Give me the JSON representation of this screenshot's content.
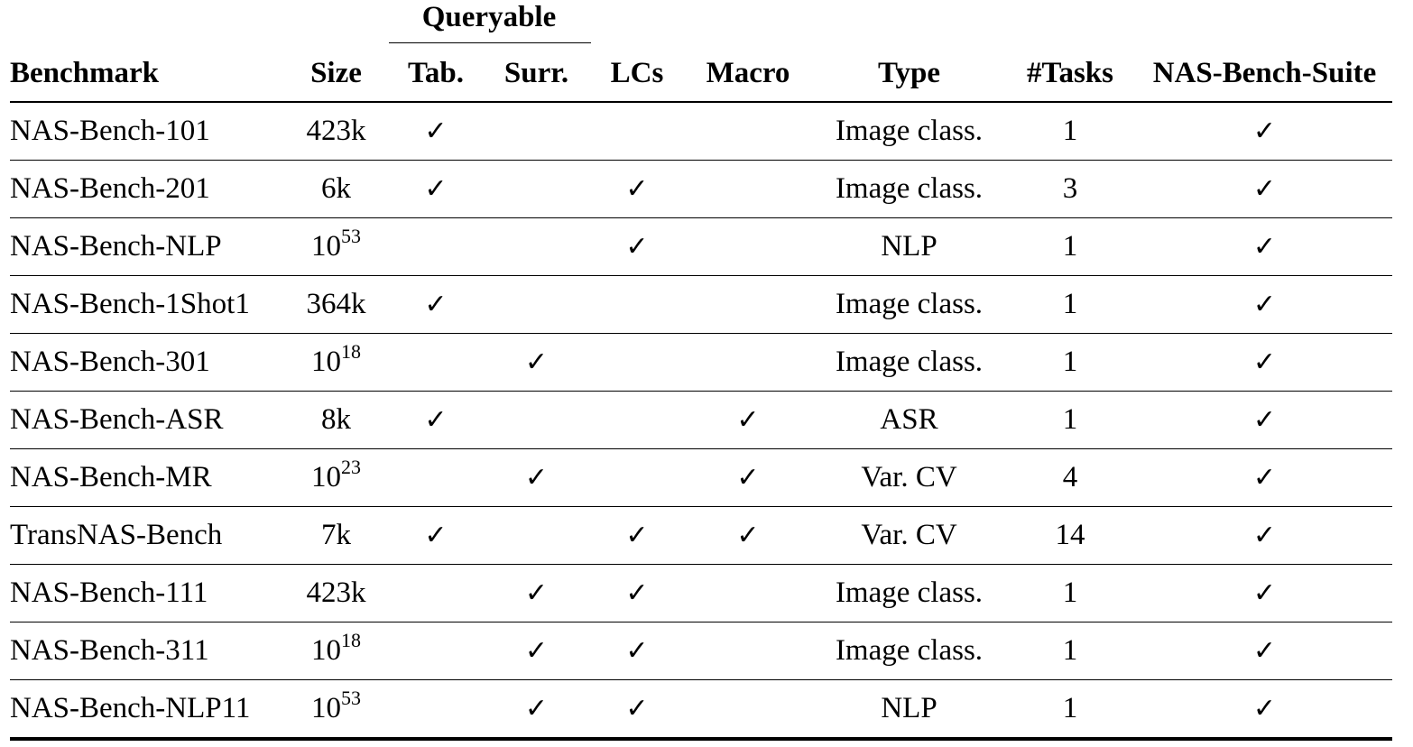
{
  "header": {
    "group_label": "Queryable",
    "columns": [
      "Benchmark",
      "Size",
      "Tab.",
      "Surr.",
      "LCs",
      "Macro",
      "Type",
      "#Tasks",
      "NAS-Bench-Suite"
    ]
  },
  "check_symbol": "✓",
  "rows": [
    {
      "name": "NAS-Bench-101",
      "size_base": "423k",
      "size_exp": "",
      "tab": true,
      "surr": false,
      "lcs": false,
      "macro": false,
      "type": "Image class.",
      "tasks": "1",
      "suite": true
    },
    {
      "name": "NAS-Bench-201",
      "size_base": "6k",
      "size_exp": "",
      "tab": true,
      "surr": false,
      "lcs": true,
      "macro": false,
      "type": "Image class.",
      "tasks": "3",
      "suite": true
    },
    {
      "name": "NAS-Bench-NLP",
      "size_base": "10",
      "size_exp": "53",
      "tab": false,
      "surr": false,
      "lcs": true,
      "macro": false,
      "type": "NLP",
      "tasks": "1",
      "suite": true
    },
    {
      "name": "NAS-Bench-1Shot1",
      "size_base": "364k",
      "size_exp": "",
      "tab": true,
      "surr": false,
      "lcs": false,
      "macro": false,
      "type": "Image class.",
      "tasks": "1",
      "suite": true
    },
    {
      "name": "NAS-Bench-301",
      "size_base": "10",
      "size_exp": "18",
      "tab": false,
      "surr": true,
      "lcs": false,
      "macro": false,
      "type": "Image class.",
      "tasks": "1",
      "suite": true
    },
    {
      "name": "NAS-Bench-ASR",
      "size_base": "8k",
      "size_exp": "",
      "tab": true,
      "surr": false,
      "lcs": false,
      "macro": true,
      "type": "ASR",
      "tasks": "1",
      "suite": true
    },
    {
      "name": "NAS-Bench-MR",
      "size_base": "10",
      "size_exp": "23",
      "tab": false,
      "surr": true,
      "lcs": false,
      "macro": true,
      "type": "Var. CV",
      "tasks": "4",
      "suite": true
    },
    {
      "name": "TransNAS-Bench",
      "size_base": "7k",
      "size_exp": "",
      "tab": true,
      "surr": false,
      "lcs": true,
      "macro": true,
      "type": "Var. CV",
      "tasks": "14",
      "suite": true
    },
    {
      "name": "NAS-Bench-111",
      "size_base": "423k",
      "size_exp": "",
      "tab": false,
      "surr": true,
      "lcs": true,
      "macro": false,
      "type": "Image class.",
      "tasks": "1",
      "suite": true
    },
    {
      "name": "NAS-Bench-311",
      "size_base": "10",
      "size_exp": "18",
      "tab": false,
      "surr": true,
      "lcs": true,
      "macro": false,
      "type": "Image class.",
      "tasks": "1",
      "suite": true
    },
    {
      "name": "NAS-Bench-NLP11",
      "size_base": "10",
      "size_exp": "53",
      "tab": false,
      "surr": true,
      "lcs": true,
      "macro": false,
      "type": "NLP",
      "tasks": "1",
      "suite": true
    }
  ]
}
